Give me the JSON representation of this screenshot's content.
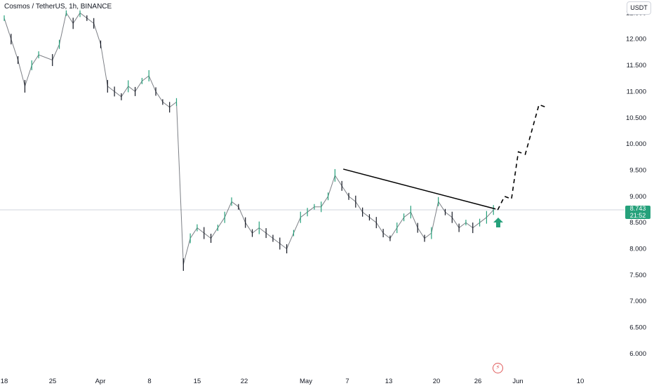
{
  "header": {
    "title": "Cosmos / TetherUS, 1h, BINANCE",
    "currency_label": "USDT"
  },
  "price_badge": {
    "price": "8.743",
    "countdown": "21:52",
    "color": "#26a17b"
  },
  "colors": {
    "up": "#26a17b",
    "line": "#000000",
    "grid_text": "#131722",
    "event": "#e05b5b"
  },
  "icons": {
    "event": "lightning-icon",
    "signal": "up-arrow-icon"
  },
  "chart_data": {
    "type": "line",
    "title": "Cosmos / TetherUS, 1h, BINANCE",
    "xlabel": "",
    "ylabel": "",
    "ylim": [
      5.6,
      12.8
    ],
    "y_ticks": [
      "12.500",
      "12.000",
      "11.500",
      "11.000",
      "10.500",
      "10.000",
      "9.500",
      "9.000",
      "8.500",
      "8.000",
      "7.500",
      "7.000",
      "6.500",
      "6.000"
    ],
    "x_ticks": [
      "18",
      "25",
      "Apr",
      "8",
      "15",
      "22",
      "May",
      "7",
      "13",
      "20",
      "26",
      "Jun",
      "10"
    ],
    "current_price": 8.743,
    "series": [
      {
        "name": "",
        "x": [
          "Mar 18",
          "Mar 19",
          "Mar 20",
          "Mar 21",
          "Mar 22",
          "Mar 23",
          "Mar 25",
          "Mar 26",
          "Mar 27",
          "Mar 28",
          "Mar 29",
          "Mar 30",
          "Mar 31",
          "Apr 1",
          "Apr 2",
          "Apr 3",
          "Apr 4",
          "Apr 5",
          "Apr 6",
          "Apr 7",
          "Apr 8",
          "Apr 9",
          "Apr 10",
          "Apr 11",
          "Apr 12",
          "Apr 13",
          "Apr 14",
          "Apr 15",
          "Apr 16",
          "Apr 17",
          "Apr 18",
          "Apr 19",
          "Apr 20",
          "Apr 21",
          "Apr 22",
          "Apr 23",
          "Apr 24",
          "Apr 25",
          "Apr 26",
          "Apr 27",
          "Apr 28",
          "Apr 29",
          "Apr 30",
          "May 1",
          "May 2",
          "May 3",
          "May 4",
          "May 5",
          "May 6",
          "May 7",
          "May 8",
          "May 9",
          "May 10",
          "May 11",
          "May 12",
          "May 13",
          "May 14",
          "May 15",
          "May 16",
          "May 17",
          "May 18",
          "May 19",
          "May 20",
          "May 21",
          "May 22",
          "May 23",
          "May 24",
          "May 25",
          "May 26",
          "May 27",
          "May 28"
        ],
        "values": [
          12.4,
          12.0,
          11.6,
          11.1,
          11.5,
          11.7,
          11.6,
          11.9,
          12.5,
          12.3,
          12.5,
          12.4,
          12.3,
          11.9,
          11.1,
          11.0,
          10.9,
          11.1,
          11.0,
          11.2,
          11.3,
          11.0,
          10.8,
          10.7,
          10.8,
          7.7,
          8.2,
          8.4,
          8.3,
          8.2,
          8.4,
          8.6,
          8.9,
          8.8,
          8.5,
          8.3,
          8.4,
          8.3,
          8.2,
          8.1,
          8.0,
          8.3,
          8.6,
          8.7,
          8.8,
          8.8,
          9.0,
          9.4,
          9.2,
          9.0,
          8.9,
          8.7,
          8.6,
          8.5,
          8.3,
          8.2,
          8.4,
          8.6,
          8.7,
          8.4,
          8.2,
          8.3,
          8.9,
          8.7,
          8.6,
          8.4,
          8.5,
          8.4,
          8.5,
          8.6,
          8.74
        ]
      }
    ],
    "trendline": {
      "from": {
        "x": "May 6",
        "y": 9.52
      },
      "to": {
        "x": "May 28",
        "y": 8.76
      }
    },
    "projection": {
      "style": "dashed",
      "points": [
        {
          "x": "May 28",
          "y": 8.74
        },
        {
          "x": "May 29",
          "y": 9.0
        },
        {
          "x": "May 30",
          "y": 8.95
        },
        {
          "x": "May 31",
          "y": 9.85
        },
        {
          "x": "Jun 1",
          "y": 9.8
        },
        {
          "x": "Jun 3",
          "y": 10.75
        },
        {
          "x": "Jun 4",
          "y": 10.7
        }
      ]
    },
    "grid": false,
    "legend": "none"
  }
}
